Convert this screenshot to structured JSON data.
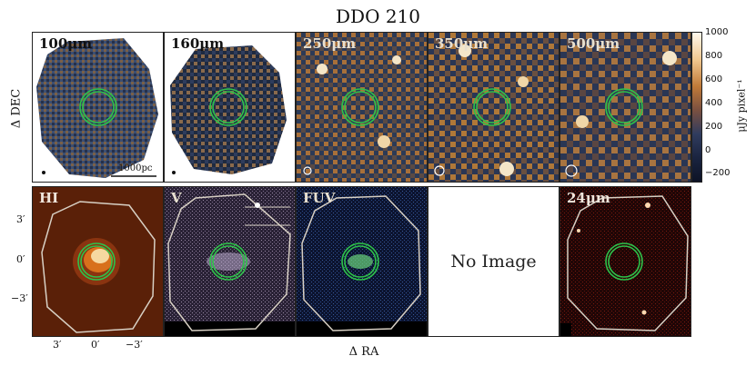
{
  "figure": {
    "title": "DDO 210",
    "ylabel": "Δ DEC",
    "xlabel": "Δ RA"
  },
  "panels_top": [
    {
      "id": "100um",
      "label": "100μm",
      "scalebar": "1000pc"
    },
    {
      "id": "160um",
      "label": "160μm"
    },
    {
      "id": "250um",
      "label": "250μm"
    },
    {
      "id": "350um",
      "label": "350μm"
    },
    {
      "id": "500um",
      "label": "500μm"
    }
  ],
  "panels_bottom": [
    {
      "id": "hi",
      "label": "HI"
    },
    {
      "id": "v",
      "label": "V"
    },
    {
      "id": "fuv",
      "label": "FUV"
    },
    {
      "id": "empty",
      "label": "No Image"
    },
    {
      "id": "24um",
      "label": "24μm"
    }
  ],
  "colorbar": {
    "label": "μJy pixel⁻¹",
    "ticks": [
      "1000",
      "800",
      "600",
      "400",
      "200",
      "0",
      "−200"
    ]
  },
  "hi_axis": {
    "y_ticks": [
      "3′",
      "0′",
      "−3′"
    ],
    "x_ticks": [
      "3′",
      "0′",
      "−3′"
    ]
  },
  "colors": {
    "aperture": "#2ec24a",
    "outline": "#d8d0c4"
  }
}
